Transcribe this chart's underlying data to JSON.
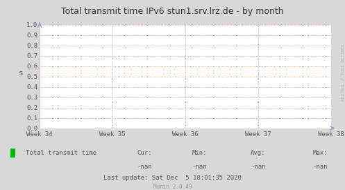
{
  "title": "Total transmit time IPv6 stun1.srv.lrz.de - by month",
  "ylabel": "s",
  "bg_color": "#d8d8d8",
  "plot_bg_color": "#ffffff",
  "grid_color": "#f08080",
  "border_color": "#bbbbbb",
  "x_labels": [
    "Week 34",
    "Week 35",
    "Week 36",
    "Week 37",
    "Week 38"
  ],
  "x_positions": [
    0.0,
    0.25,
    0.5,
    0.75,
    1.0
  ],
  "ylim": [
    0.0,
    1.0
  ],
  "yticks": [
    0.0,
    0.1,
    0.2,
    0.3,
    0.4,
    0.5,
    0.6,
    0.7,
    0.8,
    0.9,
    1.0
  ],
  "legend_label": "Total transmit time",
  "legend_color": "#00bb00",
  "cur": "-nan",
  "min_val": "-nan",
  "avg": "-nan",
  "max_val": "-nan",
  "last_update": "Last update: Sat Dec  5 18:01:35 2020",
  "munin_version": "Munin 2.0.49",
  "watermark": "RRDTOOL / TOBI OETIKER",
  "title_color": "#333333",
  "tick_color": "#555555",
  "footer_color": "#999999",
  "title_font": "DejaVu Sans",
  "mono_font": "DejaVu Sans Mono",
  "arrow_color": "#9999cc"
}
